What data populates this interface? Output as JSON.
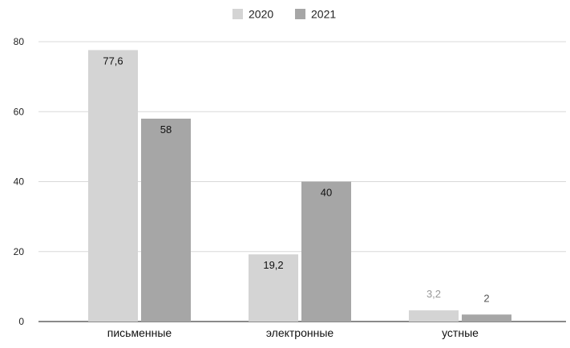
{
  "chart_data": {
    "type": "bar",
    "categories": [
      "письменные",
      "электронные",
      "устные"
    ],
    "series": [
      {
        "name": "2020",
        "values": [
          77.6,
          19.2,
          3.2
        ],
        "labels": [
          "77,6",
          "19,2",
          "3,2"
        ],
        "color": "#d4d4d4"
      },
      {
        "name": "2021",
        "values": [
          58,
          40,
          2
        ],
        "labels": [
          "58",
          "40",
          "2"
        ],
        "color": "#a6a6a6"
      }
    ],
    "ylim": [
      0,
      80
    ],
    "yticks": [
      0,
      20,
      40,
      60,
      80
    ],
    "grid": true,
    "legend": "top-center",
    "title": "",
    "xlabel": "",
    "ylabel": ""
  }
}
